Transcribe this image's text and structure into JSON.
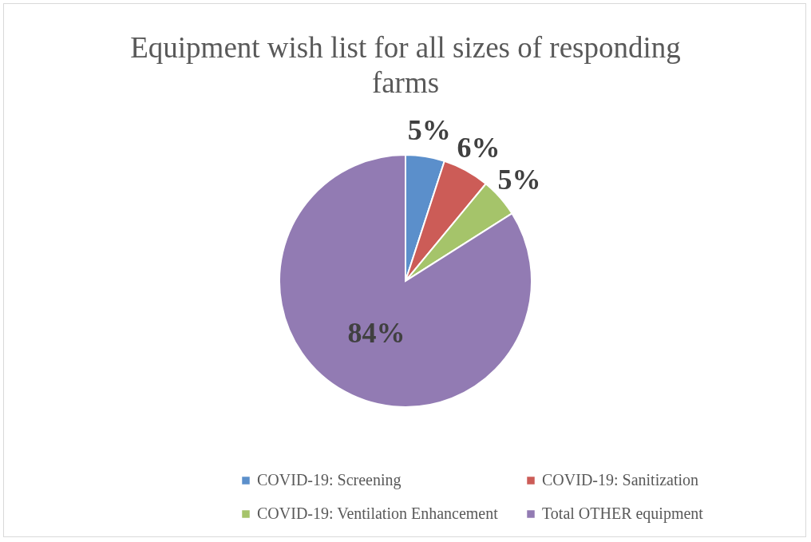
{
  "chart_data": {
    "type": "pie",
    "title": "Equipment wish list for all sizes of responding farms",
    "categories": [
      "COVID-19: Screening",
      "COVID-19: Sanitization",
      "COVID-19: Ventilation Enhancement",
      "Total OTHER equipment"
    ],
    "values": [
      5,
      6,
      5,
      84
    ],
    "colors": [
      "#5b8fcb",
      "#cc5c57",
      "#a5c46a",
      "#927bb3"
    ],
    "value_labels": [
      "5%",
      "6%",
      "5%",
      "84%"
    ],
    "legend": "bottom"
  }
}
